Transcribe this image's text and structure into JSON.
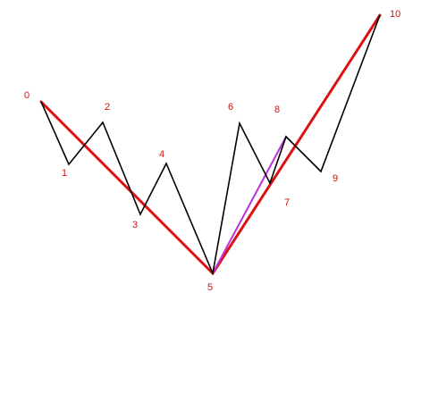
{
  "diagram": {
    "points": [
      {
        "label": "0"
      },
      {
        "label": "1"
      },
      {
        "label": "2"
      },
      {
        "label": "3"
      },
      {
        "label": "4"
      },
      {
        "label": "5"
      },
      {
        "label": "6"
      },
      {
        "label": "7"
      },
      {
        "label": "8"
      },
      {
        "label": "9"
      },
      {
        "label": "10"
      }
    ],
    "colors": {
      "zigzag": "#000000",
      "trend": "#dd1111",
      "connector": "#bb33dd",
      "labels": "#cc1111",
      "background": "#ffffff"
    }
  }
}
